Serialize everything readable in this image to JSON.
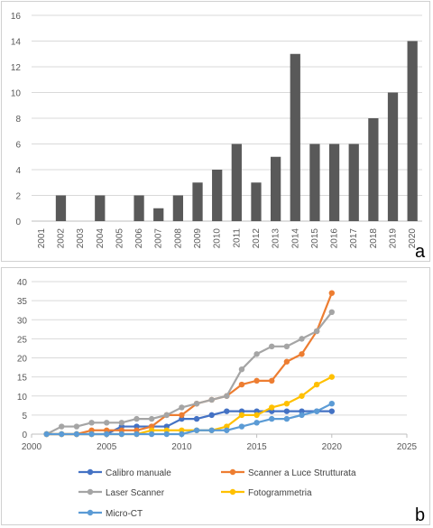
{
  "chart_data": [
    {
      "type": "bar",
      "panel_label": "a",
      "categories": [
        "2001",
        "2002",
        "2003",
        "2004",
        "2005",
        "2006",
        "2007",
        "2008",
        "2009",
        "2010",
        "2011",
        "2012",
        "2013",
        "2014",
        "2015",
        "2016",
        "2017",
        "2018",
        "2019",
        "2020"
      ],
      "values": [
        0,
        2,
        0,
        2,
        0,
        2,
        1,
        2,
        3,
        4,
        6,
        3,
        5,
        13,
        6,
        6,
        6,
        8,
        10,
        14
      ],
      "ylim": [
        0,
        16
      ],
      "yticks": [
        0,
        2,
        4,
        6,
        8,
        10,
        12,
        14,
        16
      ],
      "grid": true,
      "bar_color": "#595959",
      "title": "",
      "xlabel": "",
      "ylabel": ""
    },
    {
      "type": "line",
      "panel_label": "b",
      "xlim": [
        2000,
        2025
      ],
      "xticks": [
        2000,
        2005,
        2010,
        2015,
        2020,
        2025
      ],
      "ylim": [
        0,
        40
      ],
      "yticks": [
        0,
        5,
        10,
        15,
        20,
        25,
        30,
        35,
        40
      ],
      "grid": true,
      "legend_position": "bottom",
      "x": [
        2001,
        2002,
        2003,
        2004,
        2005,
        2006,
        2007,
        2008,
        2009,
        2010,
        2011,
        2012,
        2013,
        2014,
        2015,
        2016,
        2017,
        2018,
        2019,
        2020
      ],
      "series": [
        {
          "name": "Calibro manuale",
          "color": "#4472C4",
          "values": [
            0,
            0,
            0,
            0,
            0,
            2,
            2,
            2,
            2,
            4,
            4,
            5,
            6,
            6,
            6,
            6,
            6,
            6,
            6,
            6
          ]
        },
        {
          "name": "Scanner a Luce Strutturata",
          "color": "#ED7D31",
          "values": [
            0,
            0,
            0,
            1,
            1,
            1,
            1,
            2,
            5,
            5,
            8,
            9,
            10,
            13,
            14,
            14,
            19,
            21,
            27,
            37
          ]
        },
        {
          "name": "Laser Scanner",
          "color": "#A5A5A5",
          "values": [
            0,
            2,
            2,
            3,
            3,
            3,
            4,
            4,
            5,
            7,
            8,
            9,
            10,
            17,
            21,
            23,
            23,
            25,
            27,
            32
          ]
        },
        {
          "name": "Fotogrammetria",
          "color": "#FFC000",
          "values": [
            0,
            0,
            0,
            0,
            0,
            0,
            0,
            1,
            1,
            1,
            1,
            1,
            2,
            5,
            5,
            7,
            8,
            10,
            13,
            15
          ]
        },
        {
          "name": "Micro-CT",
          "color": "#5B9BD5",
          "values": [
            0,
            0,
            0,
            0,
            0,
            0,
            0,
            0,
            0,
            0,
            1,
            1,
            1,
            2,
            3,
            4,
            4,
            5,
            6,
            8
          ]
        }
      ],
      "title": "",
      "xlabel": "",
      "ylabel": ""
    }
  ]
}
